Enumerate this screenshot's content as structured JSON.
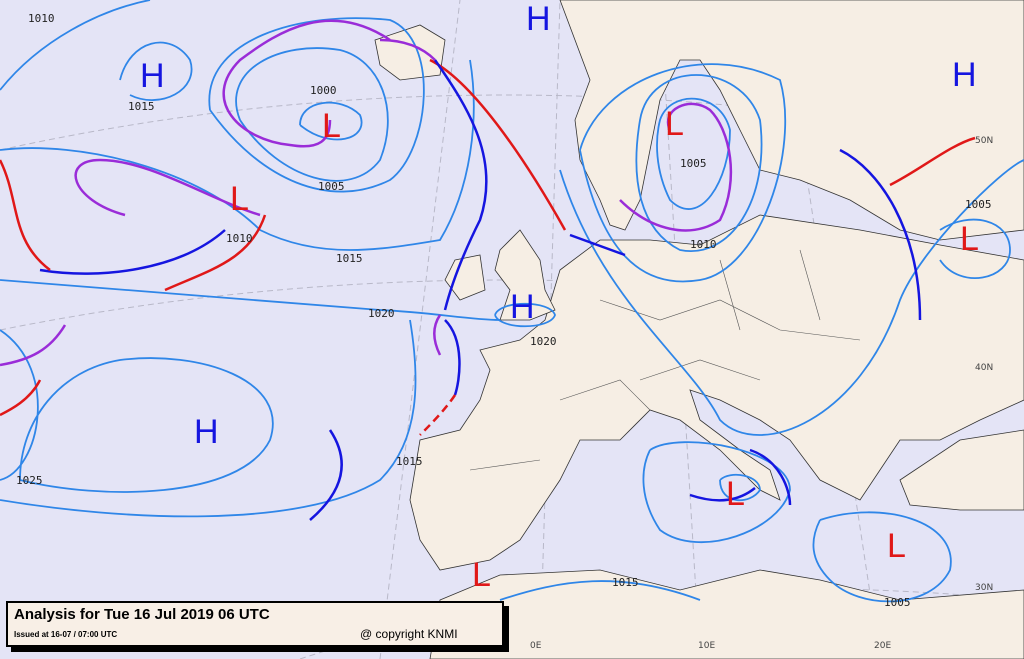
{
  "caption": {
    "title": "Analysis for Tue 16 Jul 2019 06 UTC",
    "issued": "Issued at 16-07 / 07:00 UTC",
    "copyright": "@ copyright KNMI"
  },
  "pressure_centers": [
    {
      "type": "H",
      "label": "H"
    },
    {
      "type": "H",
      "label": "H"
    },
    {
      "type": "L",
      "label": "L"
    },
    {
      "type": "L",
      "label": "L"
    },
    {
      "type": "L",
      "label": "L"
    },
    {
      "type": "H",
      "label": "H"
    },
    {
      "type": "L",
      "label": "L"
    },
    {
      "type": "H",
      "label": "H"
    },
    {
      "type": "H",
      "label": "H"
    },
    {
      "type": "L",
      "label": "L"
    },
    {
      "type": "L",
      "label": "L"
    },
    {
      "type": "L",
      "label": "L"
    }
  ],
  "isobar_labels": [
    "1010",
    "1015",
    "1000",
    "1005",
    "1010",
    "1015",
    "1020",
    "1020",
    "1025",
    "1015",
    "1005",
    "1010",
    "1005",
    "1015",
    "1005"
  ],
  "geo_labels": [
    "50N",
    "40N",
    "30N",
    "0E",
    "10E",
    "20E"
  ],
  "colors": {
    "sea": "#e4e4f6",
    "land": "#f6eee4",
    "isobar": "#2f86e8",
    "cold_front": "#1515e0",
    "warm_front": "#e01818",
    "occlusion": "#9a2cd8"
  }
}
